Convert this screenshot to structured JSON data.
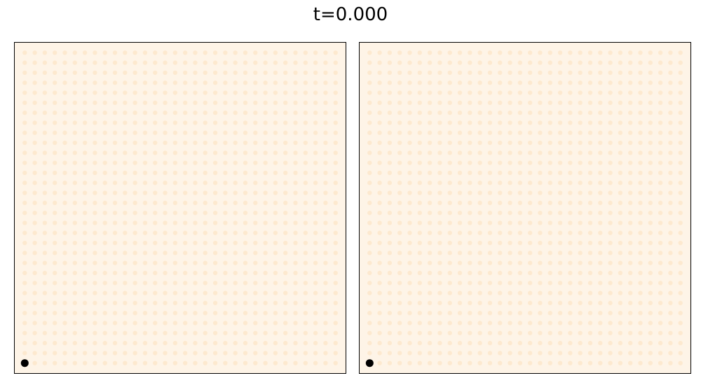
{
  "figure": {
    "title": "t=0.000"
  },
  "colors": {
    "background": "#fef4e7",
    "dot": "#fde9cf",
    "marker": "#000000",
    "frame": "#000000"
  },
  "chart_data": [
    {
      "type": "scatter",
      "title": "",
      "xlabel": "",
      "ylabel": "",
      "grid": false,
      "ticks": false,
      "lattice": {
        "columns": 32,
        "rows": 32
      },
      "marker_point": {
        "x": 1,
        "y": 1
      },
      "xlim": [
        0,
        33
      ],
      "ylim": [
        0,
        33
      ]
    },
    {
      "type": "scatter",
      "title": "",
      "xlabel": "",
      "ylabel": "",
      "grid": false,
      "ticks": false,
      "lattice": {
        "columns": 32,
        "rows": 32
      },
      "marker_point": {
        "x": 1,
        "y": 1
      },
      "xlim": [
        0,
        33
      ],
      "ylim": [
        0,
        33
      ]
    }
  ]
}
